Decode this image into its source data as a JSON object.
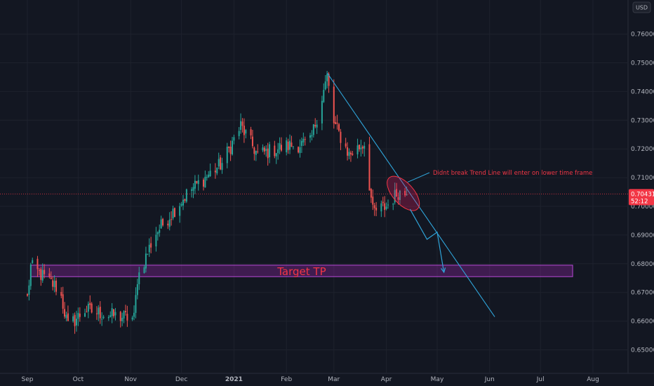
{
  "currency_button": {
    "label": "USD"
  },
  "price_badge": {
    "price": "0.70431",
    "countdown": "52:12",
    "color": "#f23645"
  },
  "colors": {
    "up": "#26a69a",
    "down": "#ef5350",
    "trendline": "#2fa4d9",
    "zone": "#9c27b0",
    "background": "#131722"
  },
  "chart_data": {
    "type": "candlestick",
    "x_axis": {
      "labels": [
        {
          "date": "2020-09-01",
          "label": "Sep"
        },
        {
          "date": "2020-10-01",
          "label": "Oct"
        },
        {
          "date": "2020-11-01",
          "label": "Nov"
        },
        {
          "date": "2020-12-01",
          "label": "Dec"
        },
        {
          "date": "2021-01-01",
          "label": "2021",
          "bold": true
        },
        {
          "date": "2021-02-01",
          "label": "Feb"
        },
        {
          "date": "2021-03-01",
          "label": "Mar"
        },
        {
          "date": "2021-04-01",
          "label": "Apr"
        },
        {
          "date": "2021-05-01",
          "label": "May"
        },
        {
          "date": "2021-06-01",
          "label": "Jun"
        },
        {
          "date": "2021-07-01",
          "label": "Jul"
        },
        {
          "date": "2021-08-01",
          "label": "Aug"
        }
      ]
    },
    "y_axis": {
      "ticks": [
        "0.65000",
        "0.66000",
        "0.67000",
        "0.68000",
        "0.69000",
        "0.70000",
        "0.71000",
        "0.72000",
        "0.73000",
        "0.74000",
        "0.75000",
        "0.76000"
      ],
      "range": [
        0.6445,
        0.7715
      ]
    },
    "key_points": [
      {
        "date": "2020-09-01",
        "close": 0.668
      },
      {
        "date": "2020-09-03",
        "close": 0.679
      },
      {
        "date": "2020-09-20",
        "close": 0.671
      },
      {
        "date": "2020-09-25",
        "close": 0.658
      },
      {
        "date": "2020-10-05",
        "close": 0.664
      },
      {
        "date": "2020-10-20",
        "close": 0.662
      },
      {
        "date": "2020-11-03",
        "close": 0.661
      },
      {
        "date": "2020-11-05",
        "close": 0.675
      },
      {
        "date": "2020-11-15",
        "close": 0.69
      },
      {
        "date": "2020-12-05",
        "close": 0.705
      },
      {
        "date": "2020-12-25",
        "close": 0.715
      },
      {
        "date": "2021-01-05",
        "close": 0.728
      },
      {
        "date": "2021-01-15",
        "close": 0.718
      },
      {
        "date": "2021-02-01",
        "close": 0.721
      },
      {
        "date": "2021-02-15",
        "close": 0.722
      },
      {
        "date": "2021-02-25",
        "close": 0.745
      },
      {
        "date": "2021-03-01",
        "close": 0.729
      },
      {
        "date": "2021-03-10",
        "close": 0.718
      },
      {
        "date": "2021-03-19",
        "close": 0.722
      },
      {
        "date": "2021-03-24",
        "close": 0.698
      },
      {
        "date": "2021-04-01",
        "close": 0.7
      },
      {
        "date": "2021-04-08",
        "close": 0.705
      },
      {
        "date": "2021-04-13",
        "close": 0.7043
      }
    ],
    "current_price": 0.70431,
    "annotations": {
      "trendline": {
        "start": {
          "date": "2021-02-25",
          "price": 0.7465
        },
        "end": {
          "date": "2021-06-04",
          "price": 0.6615
        }
      },
      "target_zone": {
        "label": "Target TP",
        "start_date": "2020-09-03",
        "end_date": "2021-07-20",
        "low": 0.6755,
        "high": 0.6795
      },
      "note": {
        "text": "Didnt break Trend Line will enter on lower time frame"
      },
      "ellipse_center": {
        "date": "2021-04-11",
        "price": 0.7045
      },
      "forecast_path": [
        {
          "date": "2021-04-15",
          "price": 0.699
        },
        {
          "date": "2021-04-25",
          "price": 0.6885
        },
        {
          "date": "2021-05-01",
          "price": 0.691
        },
        {
          "date": "2021-05-05",
          "price": 0.677
        }
      ]
    }
  }
}
